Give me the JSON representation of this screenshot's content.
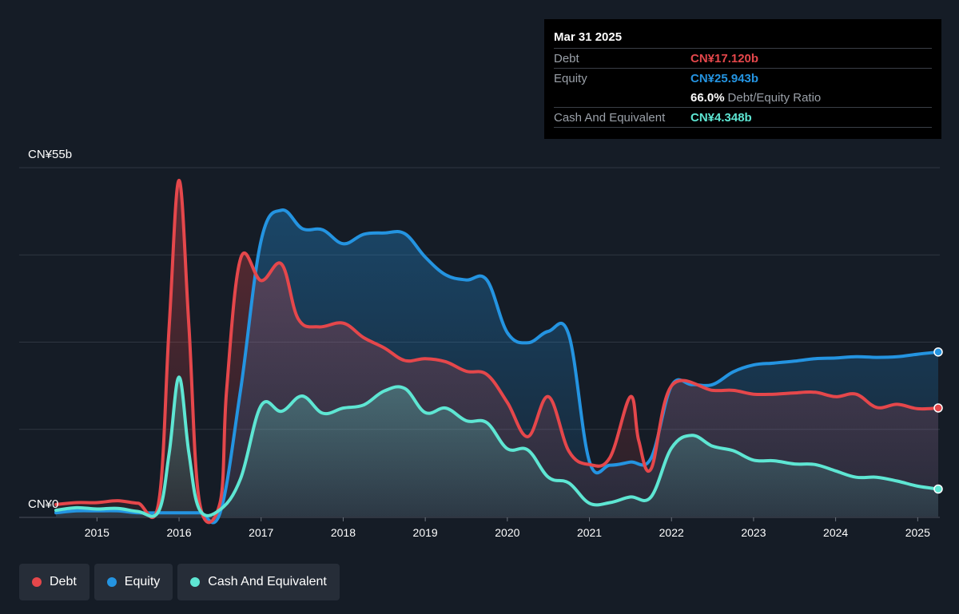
{
  "tooltip": {
    "date": "Mar 31 2025",
    "debt_label": "Debt",
    "debt_value": "CN¥17.120b",
    "equity_label": "Equity",
    "equity_value": "CN¥25.943b",
    "ratio_value": "66.0%",
    "ratio_label": "Debt/Equity Ratio",
    "cash_label": "Cash And Equivalent",
    "cash_value": "CN¥4.348b"
  },
  "legend": [
    {
      "label": "Debt",
      "color": "#e5474b"
    },
    {
      "label": "Equity",
      "color": "#2494e1"
    },
    {
      "label": "Cash And Equivalent",
      "color": "#5ee6d3"
    }
  ],
  "chart_data": {
    "type": "area",
    "y_axis_labels": [
      "CN¥55b",
      "CN¥0"
    ],
    "ylim": [
      0,
      55
    ],
    "xlim": [
      2014.5,
      2025.25
    ],
    "x_ticks": [
      2015,
      2016,
      2017,
      2018,
      2019,
      2020,
      2021,
      2022,
      2023,
      2024,
      2025
    ],
    "x_tick_labels": [
      "2015",
      "2016",
      "2017",
      "2018",
      "2019",
      "2020",
      "2021",
      "2022",
      "2023",
      "2024",
      "2025"
    ],
    "grid": true,
    "series": [
      {
        "name": "Debt",
        "color": "#e5474b",
        "points": [
          [
            2014.5,
            1.9
          ],
          [
            2014.75,
            2.2
          ],
          [
            2015.0,
            2.2
          ],
          [
            2015.25,
            2.5
          ],
          [
            2015.5,
            2.1
          ],
          [
            2015.75,
            2.1
          ],
          [
            2015.88,
            30
          ],
          [
            2016.0,
            53
          ],
          [
            2016.12,
            30
          ],
          [
            2016.25,
            2.2
          ],
          [
            2016.5,
            2.2
          ],
          [
            2016.58,
            20
          ],
          [
            2016.75,
            40.7
          ],
          [
            2017.0,
            37.2
          ],
          [
            2017.25,
            39.8
          ],
          [
            2017.45,
            31.2
          ],
          [
            2017.7,
            29.9
          ],
          [
            2018.0,
            30.5
          ],
          [
            2018.25,
            28.2
          ],
          [
            2018.5,
            26.6
          ],
          [
            2018.75,
            24.6
          ],
          [
            2019.0,
            24.9
          ],
          [
            2019.25,
            24.4
          ],
          [
            2019.5,
            22.9
          ],
          [
            2019.75,
            22.4
          ],
          [
            2020.0,
            18
          ],
          [
            2020.25,
            12.6
          ],
          [
            2020.5,
            18.9
          ],
          [
            2020.75,
            10.3
          ],
          [
            2021.0,
            8.2
          ],
          [
            2021.25,
            9.3
          ],
          [
            2021.5,
            18.9
          ],
          [
            2021.6,
            12
          ],
          [
            2021.75,
            7.5
          ],
          [
            2022.0,
            20.6
          ],
          [
            2022.5,
            19.9
          ],
          [
            2022.75,
            19.9
          ],
          [
            2023.0,
            19.3
          ],
          [
            2023.25,
            19.3
          ],
          [
            2023.5,
            19.5
          ],
          [
            2023.75,
            19.6
          ],
          [
            2024.0,
            18.9
          ],
          [
            2024.25,
            19.3
          ],
          [
            2024.5,
            17.2
          ],
          [
            2024.75,
            17.7
          ],
          [
            2025.0,
            17
          ],
          [
            2025.25,
            17.12
          ]
        ]
      },
      {
        "name": "Equity",
        "color": "#2494e1",
        "points": [
          [
            2014.5,
            0.6
          ],
          [
            2014.75,
            0.9
          ],
          [
            2015.0,
            0.9
          ],
          [
            2015.25,
            0.9
          ],
          [
            2015.5,
            0.6
          ],
          [
            2015.75,
            0.6
          ],
          [
            2016.0,
            0.6
          ],
          [
            2016.25,
            0.6
          ],
          [
            2016.5,
            0.6
          ],
          [
            2016.75,
            20
          ],
          [
            2017.0,
            43.5
          ],
          [
            2017.25,
            48.3
          ],
          [
            2017.5,
            45.4
          ],
          [
            2017.75,
            45.2
          ],
          [
            2018.0,
            43
          ],
          [
            2018.25,
            44.5
          ],
          [
            2018.5,
            44.7
          ],
          [
            2018.75,
            44.6
          ],
          [
            2019.0,
            40.9
          ],
          [
            2019.25,
            38.1
          ],
          [
            2019.5,
            37.3
          ],
          [
            2019.75,
            37.3
          ],
          [
            2020.0,
            29
          ],
          [
            2020.25,
            27.4
          ],
          [
            2020.5,
            29.2
          ],
          [
            2020.75,
            28.6
          ],
          [
            2021.0,
            8.7
          ],
          [
            2021.25,
            8.1
          ],
          [
            2021.5,
            8.6
          ],
          [
            2021.75,
            9.2
          ],
          [
            2022.0,
            20.6
          ],
          [
            2022.25,
            20.8
          ],
          [
            2022.5,
            20.8
          ],
          [
            2022.75,
            22.8
          ],
          [
            2023.0,
            23.9
          ],
          [
            2023.25,
            24.2
          ],
          [
            2023.5,
            24.5
          ],
          [
            2023.75,
            24.9
          ],
          [
            2024.0,
            25
          ],
          [
            2024.25,
            25.2
          ],
          [
            2024.5,
            25.1
          ],
          [
            2024.75,
            25.2
          ],
          [
            2025.0,
            25.6
          ],
          [
            2025.25,
            25.943
          ]
        ]
      },
      {
        "name": "Cash And Equivalent",
        "color": "#5ee6d3",
        "points": [
          [
            2014.5,
            1
          ],
          [
            2014.75,
            1.4
          ],
          [
            2015.0,
            1.2
          ],
          [
            2015.25,
            1.3
          ],
          [
            2015.5,
            0.8
          ],
          [
            2015.75,
            0.8
          ],
          [
            2015.88,
            10
          ],
          [
            2016.0,
            22
          ],
          [
            2016.12,
            10
          ],
          [
            2016.25,
            1.1
          ],
          [
            2016.5,
            1.1
          ],
          [
            2016.75,
            6
          ],
          [
            2017.0,
            17.5
          ],
          [
            2017.25,
            16.6
          ],
          [
            2017.5,
            19
          ],
          [
            2017.75,
            16.3
          ],
          [
            2018.0,
            17.1
          ],
          [
            2018.25,
            17.6
          ],
          [
            2018.5,
            19.8
          ],
          [
            2018.75,
            20.2
          ],
          [
            2019.0,
            16.4
          ],
          [
            2019.25,
            17.1
          ],
          [
            2019.5,
            15.1
          ],
          [
            2019.75,
            14.8
          ],
          [
            2020.0,
            10.7
          ],
          [
            2020.25,
            10.5
          ],
          [
            2020.5,
            6.2
          ],
          [
            2020.75,
            5.3
          ],
          [
            2021.0,
            2.1
          ],
          [
            2021.25,
            2.2
          ],
          [
            2021.5,
            3.1
          ],
          [
            2021.75,
            3.1
          ],
          [
            2022.0,
            10.8
          ],
          [
            2022.25,
            12.8
          ],
          [
            2022.5,
            11.1
          ],
          [
            2022.75,
            10.4
          ],
          [
            2023.0,
            8.9
          ],
          [
            2023.25,
            8.8
          ],
          [
            2023.5,
            8.3
          ],
          [
            2023.75,
            8.2
          ],
          [
            2024.0,
            7.2
          ],
          [
            2024.25,
            6.2
          ],
          [
            2024.5,
            6.2
          ],
          [
            2024.75,
            5.6
          ],
          [
            2025.0,
            4.8
          ],
          [
            2025.25,
            4.348
          ]
        ]
      }
    ]
  }
}
